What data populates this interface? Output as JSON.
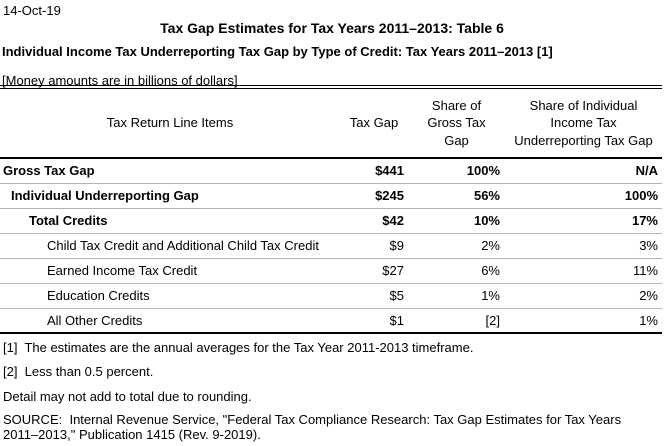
{
  "page": {
    "date": "14-Oct-19",
    "title": "Tax Gap Estimates for Tax Years 2011–2013: Table 6",
    "subtitle": "Individual Income Tax Underreporting Tax Gap by Type of Credit: Tax Years 2011–2013 [1]",
    "units_note": "[Money amounts are in billions of dollars]"
  },
  "table": {
    "columns": {
      "line_items": "Tax Return Line Items",
      "tax_gap": "Tax Gap",
      "share_gross": "Share of\nGross Tax\nGap",
      "share_underreporting": "Share of Individual\nIncome Tax\nUnderreporting Tax Gap"
    },
    "rows": [
      {
        "label": "Gross Tax Gap",
        "indent": 0,
        "bold": true,
        "tax_gap": "$441",
        "share_gross": "100%",
        "share_underreporting": "N/A"
      },
      {
        "label": "Individual Underreporting Gap",
        "indent": 1,
        "bold": true,
        "tax_gap": "$245",
        "share_gross": "56%",
        "share_underreporting": "100%"
      },
      {
        "label": "Total Credits",
        "indent": 2,
        "bold": true,
        "tax_gap": "$42",
        "share_gross": "10%",
        "share_underreporting": "17%"
      },
      {
        "label": "Child Tax Credit and Additional Child Tax Credit",
        "indent": 3,
        "bold": false,
        "tax_gap": "$9",
        "share_gross": "2%",
        "share_underreporting": "3%"
      },
      {
        "label": "Earned Income Tax Credit",
        "indent": 3,
        "bold": false,
        "tax_gap": "$27",
        "share_gross": "6%",
        "share_underreporting": "11%"
      },
      {
        "label": "Education Credits",
        "indent": 3,
        "bold": false,
        "tax_gap": "$5",
        "share_gross": "1%",
        "share_underreporting": "2%"
      },
      {
        "label": "All Other Credits",
        "indent": 3,
        "bold": false,
        "tax_gap": "$1",
        "share_gross": "[2]",
        "share_underreporting": "1%"
      }
    ]
  },
  "footnotes": {
    "note1": "[1]  The estimates are the annual averages for the Tax Year 2011-2013 timeframe.",
    "note2": "[2]  Less than 0.5 percent.",
    "rounding": "Detail may not add to total due to rounding.",
    "source": "SOURCE:  Internal Revenue Service, \"Federal Tax Compliance Research: Tax Gap Estimates for Tax Years 2011–2013,\" Publication 1415 (Rev. 9-2019)."
  },
  "colors": {
    "text": "#000000",
    "background": "#ffffff",
    "row_divider": "#b3b3b3",
    "table_border": "#000000"
  }
}
